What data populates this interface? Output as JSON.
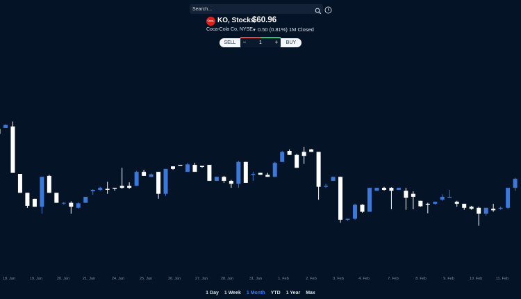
{
  "search": {
    "placeholder": "Search..."
  },
  "icons": {
    "search": "search-icon",
    "history": "clock-icon"
  },
  "stock": {
    "logo_text": "Coca-Cola",
    "title": "KO, Stocks",
    "price": "$60.96",
    "company": "Coca-Cola Co, NYSE",
    "change_arrow": "▼",
    "change": "0.50 (0.81%) 1M Closed"
  },
  "trade": {
    "sell": "SELL",
    "buy": "BUY",
    "minus": "−",
    "plus": "+",
    "quantity": "1"
  },
  "colors": {
    "background": "#041326",
    "up_candle": "#ffffff",
    "down_candle": "#3b78d8",
    "sell_accent": "#e24b4b",
    "buy_accent": "#2ec27e",
    "logo": "#e0201b",
    "active_period": "#3b82f6"
  },
  "periods": [
    {
      "label": "1 Day"
    },
    {
      "label": "1 Week"
    },
    {
      "label": "1 Month",
      "active": true
    },
    {
      "label": "YTD"
    },
    {
      "label": "1 Year"
    },
    {
      "label": "Max"
    }
  ],
  "chart_data": {
    "type": "candlestick",
    "x_tick_labels": [
      "18. Jan",
      "19. Jan",
      "20. Jan",
      "21. Jan",
      "24. Jan",
      "25. Jan",
      "26. Jan",
      "27. Jan",
      "28. Jan",
      "31. Jan",
      "1. Feb",
      "2. Feb",
      "3. Feb",
      "4. Feb",
      "7. Feb",
      "8. Feb",
      "9. Feb",
      "10. Feb",
      "11. Feb"
    ],
    "ylim": [
      59.2,
      62.6
    ],
    "grid": false,
    "candles": [
      {
        "color": "white",
        "open": 61.8,
        "close": 61.7,
        "high": 61.8,
        "low": 61.7
      },
      {
        "color": "blue",
        "open": 61.82,
        "close": 61.88,
        "high": 61.89,
        "low": 61.82
      },
      {
        "color": "white",
        "open": 61.85,
        "close": 60.92,
        "high": 61.95,
        "low": 60.92
      },
      {
        "color": "white",
        "open": 60.9,
        "close": 60.52,
        "high": 60.9,
        "low": 60.52
      },
      {
        "color": "white",
        "open": 60.52,
        "close": 60.26,
        "high": 60.52,
        "low": 60.22
      },
      {
        "color": "white",
        "open": 60.4,
        "close": 60.24,
        "high": 60.4,
        "low": 60.24
      },
      {
        "color": "blue",
        "open": 60.24,
        "close": 60.84,
        "high": 60.84,
        "low": 60.1
      },
      {
        "color": "white",
        "open": 60.86,
        "close": 60.52,
        "high": 60.88,
        "low": 60.52
      },
      {
        "color": "white",
        "open": 60.52,
        "close": 60.32,
        "high": 60.52,
        "low": 60.32
      },
      {
        "color": "blue",
        "open": 60.31,
        "close": 60.32,
        "high": 60.33,
        "low": 60.28
      },
      {
        "color": "white",
        "open": 60.32,
        "close": 60.24,
        "high": 60.35,
        "low": 60.1
      },
      {
        "color": "blue",
        "open": 60.22,
        "close": 60.31,
        "high": 60.33,
        "low": 60.2
      },
      {
        "color": "blue",
        "open": 60.32,
        "close": 60.44,
        "high": 60.44,
        "low": 60.32
      },
      {
        "color": "blue",
        "open": 60.55,
        "close": 60.58,
        "high": 60.59,
        "low": 60.48
      },
      {
        "color": "blue",
        "open": 60.58,
        "close": 60.62,
        "high": 60.64,
        "low": 60.56
      },
      {
        "color": "white",
        "open": 60.6,
        "close": 60.58,
        "high": 60.74,
        "low": 60.5
      },
      {
        "color": "white",
        "open": 60.62,
        "close": 60.6,
        "high": 60.62,
        "low": 60.56
      },
      {
        "color": "white",
        "open": 60.66,
        "close": 60.62,
        "high": 61.02,
        "low": 60.6
      },
      {
        "color": "white",
        "open": 60.66,
        "close": 60.62,
        "high": 60.73,
        "low": 60.6
      },
      {
        "color": "blue",
        "open": 60.66,
        "close": 60.94,
        "high": 60.96,
        "low": 60.66
      },
      {
        "color": "white",
        "open": 60.94,
        "close": 60.86,
        "high": 60.98,
        "low": 60.86
      },
      {
        "color": "blue",
        "open": 60.84,
        "close": 60.89,
        "high": 60.91,
        "low": 60.83
      },
      {
        "color": "white",
        "open": 60.94,
        "close": 60.5,
        "high": 60.94,
        "low": 60.4
      },
      {
        "color": "blue",
        "open": 60.5,
        "close": 61.0,
        "high": 61.0,
        "low": 60.46
      },
      {
        "color": "white",
        "open": 61.05,
        "close": 61.0,
        "high": 61.05,
        "low": 60.98
      },
      {
        "color": "white",
        "open": 61.08,
        "close": 61.06,
        "high": 61.08,
        "low": 61.06
      },
      {
        "color": "blue",
        "open": 60.94,
        "close": 61.09,
        "high": 61.12,
        "low": 60.94
      },
      {
        "color": "white",
        "open": 61.08,
        "close": 60.94,
        "high": 61.12,
        "low": 60.94
      },
      {
        "color": "white",
        "open": 61.06,
        "close": 61.04,
        "high": 61.06,
        "low": 61.02
      },
      {
        "color": "white",
        "open": 61.08,
        "close": 60.76,
        "high": 61.08,
        "low": 60.76
      },
      {
        "color": "blue",
        "open": 60.76,
        "close": 60.84,
        "high": 60.84,
        "low": 60.76
      },
      {
        "color": "white",
        "open": 60.84,
        "close": 60.76,
        "high": 60.86,
        "low": 60.72
      },
      {
        "color": "white",
        "open": 60.76,
        "close": 60.7,
        "high": 60.78,
        "low": 60.62
      },
      {
        "color": "blue",
        "open": 60.7,
        "close": 61.14,
        "high": 61.16,
        "low": 60.62
      },
      {
        "color": "white",
        "open": 61.14,
        "close": 60.72,
        "high": 61.14,
        "low": 60.72
      },
      {
        "color": "blue",
        "open": 60.88,
        "close": 60.9,
        "high": 60.94,
        "low": 60.76
      },
      {
        "color": "white",
        "open": 60.92,
        "close": 60.88,
        "high": 60.92,
        "low": 60.88
      },
      {
        "color": "white",
        "open": 60.88,
        "close": 60.84,
        "high": 60.92,
        "low": 60.84
      },
      {
        "color": "blue",
        "open": 60.84,
        "close": 61.12,
        "high": 61.14,
        "low": 60.84
      },
      {
        "color": "blue",
        "open": 61.14,
        "close": 61.34,
        "high": 61.36,
        "low": 61.14
      },
      {
        "color": "white",
        "open": 61.36,
        "close": 61.28,
        "high": 61.39,
        "low": 61.28
      },
      {
        "color": "white",
        "open": 61.28,
        "close": 61.02,
        "high": 61.3,
        "low": 61.02
      },
      {
        "color": "white",
        "open": 61.34,
        "close": 61.26,
        "high": 61.44,
        "low": 61.1
      },
      {
        "color": "white",
        "open": 61.39,
        "close": 61.34,
        "high": 61.4,
        "low": 61.34
      },
      {
        "color": "white",
        "open": 61.34,
        "close": 60.64,
        "high": 61.34,
        "low": 60.38
      },
      {
        "color": "blue",
        "open": 60.64,
        "close": 60.66,
        "high": 60.7,
        "low": 60.62
      },
      {
        "color": "blue",
        "open": 60.76,
        "close": 60.84,
        "high": 60.84,
        "low": 60.76
      },
      {
        "color": "white",
        "open": 60.84,
        "close": 59.98,
        "high": 60.84,
        "low": 59.92
      },
      {
        "color": "blue",
        "open": 59.98,
        "close": 60.0,
        "high": 60.0,
        "low": 59.96
      },
      {
        "color": "blue",
        "open": 60.0,
        "close": 60.28,
        "high": 60.3,
        "low": 59.98
      },
      {
        "color": "white",
        "open": 60.28,
        "close": 60.14,
        "high": 60.29,
        "low": 60.12
      },
      {
        "color": "blue",
        "open": 60.14,
        "close": 60.62,
        "high": 60.62,
        "low": 60.14
      },
      {
        "color": "blue",
        "open": 60.56,
        "close": 60.62,
        "high": 60.62,
        "low": 60.56
      },
      {
        "color": "white",
        "open": 60.62,
        "close": 60.58,
        "high": 60.64,
        "low": 60.56
      },
      {
        "color": "white",
        "open": 60.62,
        "close": 60.56,
        "high": 60.63,
        "low": 60.19
      },
      {
        "color": "blue",
        "open": 60.58,
        "close": 60.62,
        "high": 60.62,
        "low": 60.58
      },
      {
        "color": "white",
        "open": 60.56,
        "close": 60.42,
        "high": 60.62,
        "low": 60.18
      },
      {
        "color": "white",
        "open": 60.5,
        "close": 60.44,
        "high": 60.55,
        "low": 60.19
      },
      {
        "color": "white",
        "open": 60.36,
        "close": 60.25,
        "high": 60.36,
        "low": 60.24
      },
      {
        "color": "white",
        "open": 60.3,
        "close": 60.28,
        "high": 60.32,
        "low": 60.11
      },
      {
        "color": "blue",
        "open": 60.3,
        "close": 60.34,
        "high": 60.34,
        "low": 60.28
      },
      {
        "color": "blue",
        "open": 60.38,
        "close": 60.44,
        "high": 60.49,
        "low": 60.36
      },
      {
        "color": "blue",
        "open": 60.42,
        "close": 60.44,
        "high": 60.58,
        "low": 60.42
      },
      {
        "color": "white",
        "open": 60.34,
        "close": 60.3,
        "high": 60.36,
        "low": 60.24
      },
      {
        "color": "white",
        "open": 60.3,
        "close": 60.22,
        "high": 60.3,
        "low": 60.18
      },
      {
        "color": "white",
        "open": 60.24,
        "close": 60.2,
        "high": 60.26,
        "low": 60.18
      },
      {
        "color": "white",
        "open": 60.22,
        "close": 60.1,
        "high": 60.24,
        "low": 59.86
      },
      {
        "color": "blue",
        "open": 60.1,
        "close": 60.22,
        "high": 60.22,
        "low": 60.06
      },
      {
        "color": "white",
        "open": 60.2,
        "close": 60.17,
        "high": 60.3,
        "low": 60.14
      },
      {
        "color": "blue",
        "open": 60.2,
        "close": 60.22,
        "high": 60.24,
        "low": 60.18
      },
      {
        "color": "blue",
        "open": 60.22,
        "close": 60.62,
        "high": 60.62,
        "low": 60.2
      },
      {
        "color": "blue",
        "open": 60.62,
        "close": 60.8,
        "high": 60.82,
        "low": 60.56
      }
    ]
  }
}
